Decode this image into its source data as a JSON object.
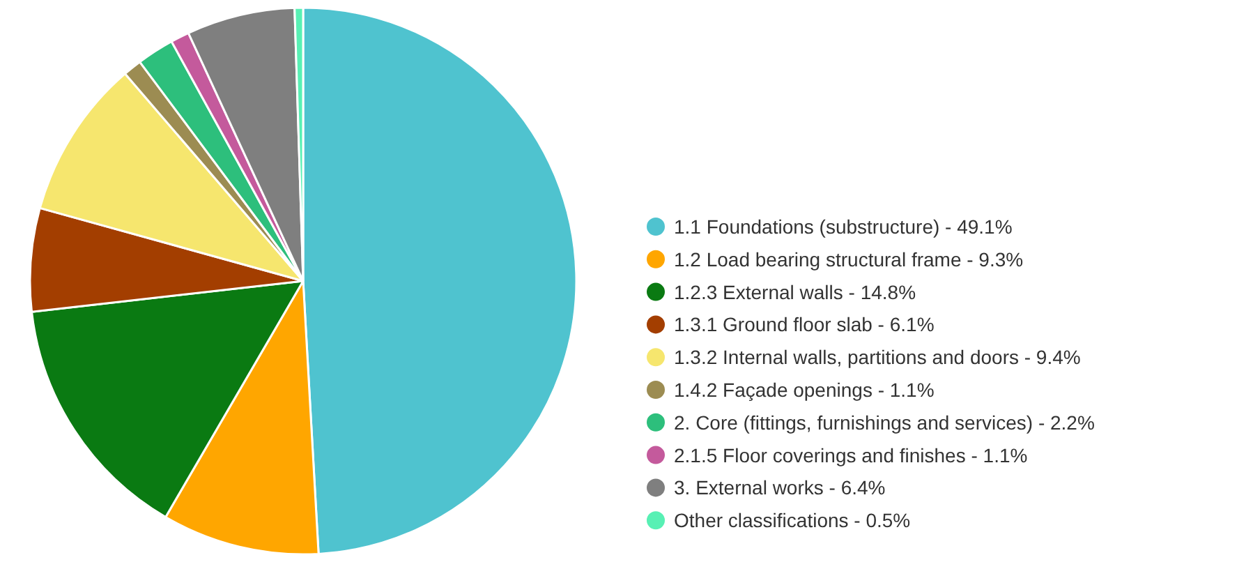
{
  "chart_data": {
    "type": "pie",
    "legend": "right",
    "categories": [
      "1.1 Foundations (substructure) - 49.1%",
      "1.2 Load bearing structural frame - 9.3%",
      "1.2.3 External walls - 14.8%",
      "1.3.1 Ground floor slab - 6.1%",
      "1.3.2 Internal walls, partitions and doors - 9.4%",
      "1.4.2 Façade openings - 1.1%",
      "2. Core (fittings, furnishings and services) - 2.2%",
      "2.1.5 Floor coverings and finishes - 1.1%",
      "3. External works - 6.4%",
      "Other classifications - 0.5%"
    ],
    "values": [
      49.1,
      9.3,
      14.8,
      6.1,
      9.4,
      1.1,
      2.2,
      1.1,
      6.4,
      0.5
    ],
    "colors": [
      "#4fc3cf",
      "#ffa600",
      "#0a7a12",
      "#a33e00",
      "#f6e66e",
      "#9c8c52",
      "#2dbf7c",
      "#c45a9c",
      "#7f7f7f",
      "#58f0b4"
    ]
  }
}
